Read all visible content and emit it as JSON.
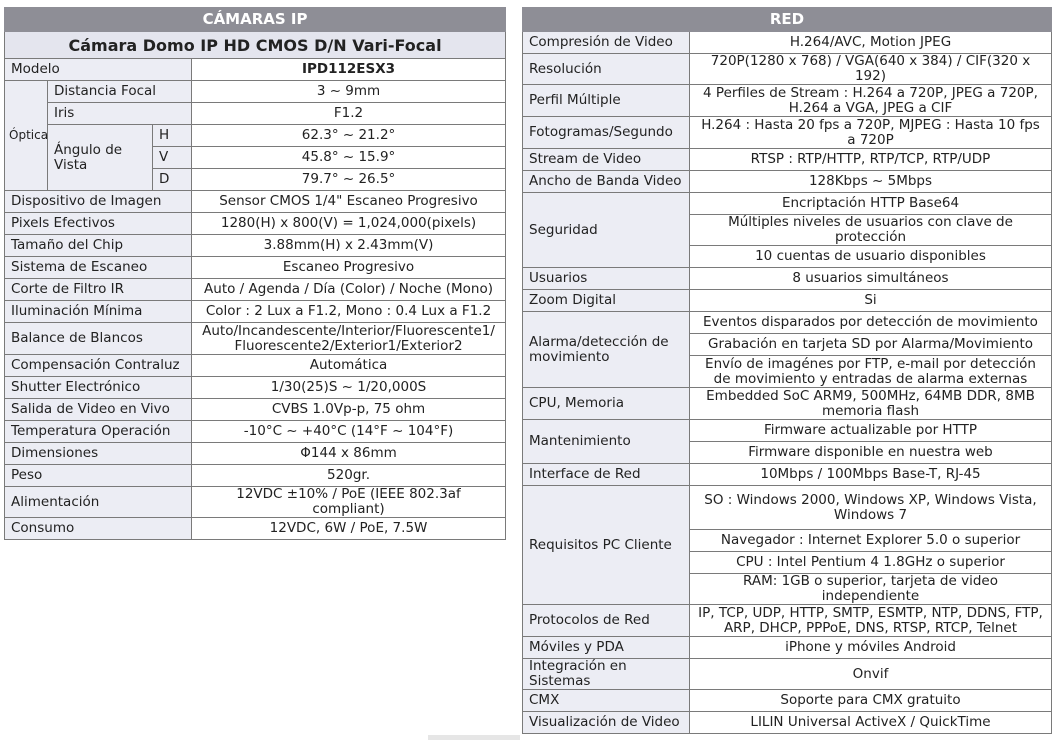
{
  "cameras": {
    "title": "CÁMARAS IP",
    "subtitle": "Cámara Domo IP HD CMOS D/N Vari-Focal",
    "model_label": "Modelo",
    "model_value": "IPD112ESX3",
    "optics": {
      "label": "Óptica",
      "focal_label": "Distancia Focal",
      "focal_value": "3 ~ 9mm",
      "iris_label": "Iris",
      "iris_value": "F1.2",
      "angle_label": "Ángulo de Vista",
      "angles": [
        {
          "axis": "H",
          "value": "62.3° ~ 21.2°"
        },
        {
          "axis": "V",
          "value": "45.8° ~ 15.9°"
        },
        {
          "axis": "D",
          "value": "79.7° ~ 26.5°"
        }
      ]
    },
    "rows": [
      {
        "label": "Dispositivo de Imagen",
        "value": "Sensor CMOS 1/4\" Escaneo Progresivo"
      },
      {
        "label": "Pixels Efectivos",
        "value": "1280(H) x 800(V) = 1,024,000(pixels)"
      },
      {
        "label": "Tamaño del Chip",
        "value": "3.88mm(H) x 2.43mm(V)"
      },
      {
        "label": "Sistema de Escaneo",
        "value": "Escaneo Progresivo"
      },
      {
        "label": "Corte de Filtro IR",
        "value": "Auto / Agenda / Día (Color) / Noche (Mono)"
      },
      {
        "label": "Iluminación Mínima",
        "value": "Color : 2 Lux a F1.2, Mono : 0.4 Lux a F1.2"
      },
      {
        "label": "Balance de Blancos",
        "value": "Auto/Incandescente/Interior/Fluorescente1/ Fluorescente2/Exterior1/Exterior2"
      },
      {
        "label": "Compensación Contraluz",
        "value": "Automática"
      },
      {
        "label": "Shutter Electrónico",
        "value": "1/30(25)S ~ 1/20,000S"
      },
      {
        "label": "Salida de Video en Vivo",
        "value": "CVBS 1.0Vp-p, 75 ohm"
      },
      {
        "label": "Temperatura Operación",
        "value": "-10°C ~ +40°C (14°F ~ 104°F)"
      },
      {
        "label": "Dimensiones",
        "value": "Φ144 x 86mm"
      },
      {
        "label": "Peso",
        "value": "520gr."
      },
      {
        "label": "Alimentación",
        "value": "12VDC ±10% / PoE  (IEEE 802.3af compliant)"
      },
      {
        "label": "Consumo",
        "value": "12VDC, 6W / PoE, 7.5W"
      }
    ]
  },
  "network": {
    "title": "RED",
    "groups": [
      {
        "label": "Compresión de Video",
        "values": [
          "H.264/AVC, Motion JPEG"
        ]
      },
      {
        "label": "Resolución",
        "values": [
          "720P(1280 x 768) / VGA(640 x 384) / CIF(320 x 192)"
        ]
      },
      {
        "label": "Perfil Múltiple",
        "values": [
          "4 Perfiles de Stream : H.264 a 720P, JPEG a 720P, H.264 a VGA, JPEG a CIF"
        ]
      },
      {
        "label": "Fotogramas/Segundo",
        "values": [
          "H.264 : Hasta 20 fps a 720P, MJPEG : Hasta 10 fps a 720P"
        ]
      },
      {
        "label": "Stream de Video",
        "values": [
          "RTSP : RTP/HTTP, RTP/TCP, RTP/UDP"
        ]
      },
      {
        "label": "Ancho de Banda Video",
        "values": [
          "128Kbps ~ 5Mbps"
        ]
      },
      {
        "label": "Seguridad",
        "values": [
          "Encriptación HTTP Base64",
          "Múltiples niveles de usuarios con clave de protección",
          "10 cuentas de usuario disponibles"
        ]
      },
      {
        "label": "Usuarios",
        "values": [
          "8 usuarios simultáneos"
        ]
      },
      {
        "label": "Zoom Digital",
        "values": [
          "Si"
        ]
      },
      {
        "label": "Alarma/detección de movimiento",
        "values": [
          "Eventos disparados por detección de movimiento",
          "Grabación en tarjeta SD por Alarma/Movimiento",
          "Envío de imagénes por FTP, e-mail por detección de movimiento y entradas de alarma externas"
        ]
      },
      {
        "label": "CPU, Memoria",
        "values": [
          "Embedded SoC ARM9, 500MHz, 64MB DDR, 8MB memoria flash"
        ]
      },
      {
        "label": "Mantenimiento",
        "values": [
          "Firmware actualizable por HTTP",
          "Firmware disponible en nuestra web"
        ]
      },
      {
        "label": "Interface de Red",
        "values": [
          "10Mbps / 100Mbps Base-T, RJ-45"
        ]
      },
      {
        "label": "Requisitos PC Cliente",
        "values": [
          "SO : Windows 2000, Windows XP, Windows Vista, Windows 7",
          "Navegador : Internet Explorer 5.0 o superior",
          "CPU : Intel Pentium 4 1.8GHz o superior",
          "RAM: 1GB o superior, tarjeta de video independiente"
        ]
      },
      {
        "label": "Protocolos de Red",
        "values": [
          "IP, TCP, UDP, HTTP, SMTP, ESMTP, NTP, DDNS, FTP, ARP, DHCP, PPPoE, DNS, RTSP, RTCP, Telnet"
        ]
      },
      {
        "label": "Móviles y PDA",
        "values": [
          "iPhone y móviles Android"
        ]
      },
      {
        "label": "Integración en Sistemas",
        "values": [
          "Onvif"
        ]
      },
      {
        "label": "CMX",
        "values": [
          "Soporte para CMX gratuito"
        ]
      },
      {
        "label": "Visualización de Video",
        "values": [
          "LILIN Universal ActiveX / QuickTime"
        ]
      }
    ]
  }
}
